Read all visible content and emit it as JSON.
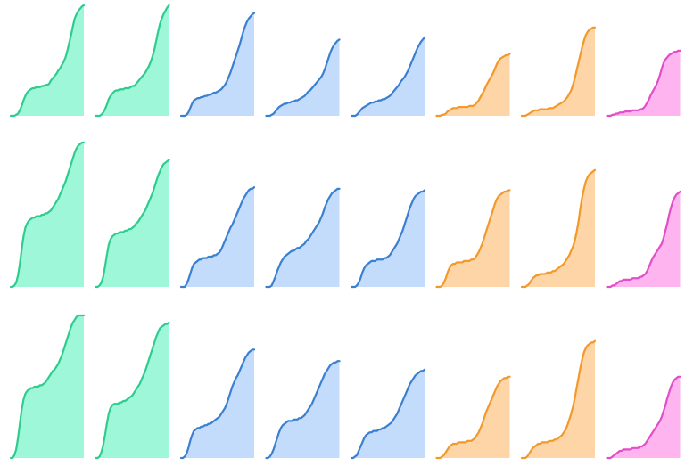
{
  "chart_data": {
    "type": "area",
    "rows": 3,
    "cols": 8,
    "x": [
      0,
      0.025,
      0.05,
      0.075,
      0.1,
      0.125,
      0.15,
      0.175,
      0.2,
      0.225,
      0.25,
      0.275,
      0.3,
      0.325,
      0.35,
      0.375,
      0.4,
      0.425,
      0.45,
      0.475,
      0.5,
      0.525,
      0.55,
      0.575,
      0.6,
      0.625,
      0.65,
      0.675,
      0.7,
      0.725,
      0.75,
      0.775,
      0.8,
      0.825,
      0.85,
      0.875,
      0.9,
      0.925,
      0.95,
      0.975,
      1
    ],
    "xlim": [
      0,
      1
    ],
    "ylim": [
      0,
      1
    ],
    "grid": false,
    "legend": "none",
    "colors": {
      "green": {
        "stroke": "#2ecc8f",
        "fill": "#9ff7d9"
      },
      "blue": {
        "stroke": "#3a7fd0",
        "fill": "#c3dcfc"
      },
      "orange": {
        "stroke": "#f3982a",
        "fill": "#fed5a6"
      },
      "pink": {
        "stroke": "#e24ec6",
        "fill": "#fdb4ef"
      }
    },
    "panels": [
      {
        "row": 0,
        "col": 0,
        "color": "green",
        "values": [
          0.0,
          0.0,
          0.0,
          0.01,
          0.02,
          0.05,
          0.09,
          0.14,
          0.18,
          0.21,
          0.23,
          0.24,
          0.25,
          0.25,
          0.26,
          0.26,
          0.26,
          0.27,
          0.27,
          0.28,
          0.28,
          0.29,
          0.32,
          0.34,
          0.36,
          0.38,
          0.41,
          0.43,
          0.46,
          0.49,
          0.53,
          0.59,
          0.66,
          0.73,
          0.81,
          0.88,
          0.92,
          0.95,
          0.97,
          0.99,
          1.0
        ]
      },
      {
        "row": 0,
        "col": 1,
        "color": "green",
        "values": [
          0.0,
          0.0,
          0.0,
          0.01,
          0.03,
          0.06,
          0.1,
          0.15,
          0.18,
          0.2,
          0.22,
          0.23,
          0.23,
          0.24,
          0.24,
          0.24,
          0.25,
          0.25,
          0.25,
          0.26,
          0.27,
          0.27,
          0.29,
          0.31,
          0.33,
          0.35,
          0.37,
          0.39,
          0.42,
          0.45,
          0.49,
          0.54,
          0.6,
          0.68,
          0.76,
          0.83,
          0.88,
          0.92,
          0.95,
          0.98,
          1.0
        ]
      },
      {
        "row": 0,
        "col": 2,
        "color": "blue",
        "values": [
          0.0,
          0.0,
          0.0,
          0.01,
          0.03,
          0.07,
          0.11,
          0.14,
          0.15,
          0.16,
          0.16,
          0.17,
          0.17,
          0.18,
          0.18,
          0.19,
          0.19,
          0.2,
          0.21,
          0.21,
          0.22,
          0.23,
          0.24,
          0.26,
          0.28,
          0.31,
          0.35,
          0.39,
          0.44,
          0.49,
          0.54,
          0.59,
          0.64,
          0.7,
          0.76,
          0.81,
          0.85,
          0.88,
          0.9,
          0.92,
          0.93
        ]
      },
      {
        "row": 0,
        "col": 3,
        "color": "blue",
        "values": [
          0.0,
          0.0,
          0.0,
          0.01,
          0.02,
          0.04,
          0.06,
          0.08,
          0.09,
          0.1,
          0.11,
          0.11,
          0.12,
          0.12,
          0.13,
          0.13,
          0.14,
          0.14,
          0.15,
          0.16,
          0.17,
          0.18,
          0.2,
          0.22,
          0.23,
          0.25,
          0.27,
          0.29,
          0.31,
          0.33,
          0.35,
          0.38,
          0.42,
          0.47,
          0.52,
          0.57,
          0.61,
          0.64,
          0.66,
          0.68,
          0.69
        ]
      },
      {
        "row": 0,
        "col": 4,
        "color": "blue",
        "values": [
          0.0,
          0.0,
          0.0,
          0.01,
          0.03,
          0.05,
          0.07,
          0.08,
          0.09,
          0.1,
          0.11,
          0.12,
          0.12,
          0.13,
          0.13,
          0.14,
          0.14,
          0.15,
          0.15,
          0.16,
          0.17,
          0.18,
          0.2,
          0.22,
          0.24,
          0.26,
          0.28,
          0.31,
          0.33,
          0.35,
          0.38,
          0.41,
          0.45,
          0.49,
          0.53,
          0.57,
          0.61,
          0.64,
          0.67,
          0.69,
          0.71
        ]
      },
      {
        "row": 0,
        "col": 5,
        "color": "orange",
        "values": [
          0.0,
          0.0,
          0.0,
          0.01,
          0.01,
          0.02,
          0.04,
          0.05,
          0.06,
          0.07,
          0.07,
          0.07,
          0.08,
          0.08,
          0.08,
          0.08,
          0.08,
          0.08,
          0.09,
          0.09,
          0.09,
          0.1,
          0.12,
          0.14,
          0.17,
          0.2,
          0.23,
          0.27,
          0.3,
          0.33,
          0.36,
          0.39,
          0.43,
          0.47,
          0.5,
          0.52,
          0.53,
          0.54,
          0.55,
          0.55,
          0.56
        ]
      },
      {
        "row": 0,
        "col": 6,
        "color": "orange",
        "values": [
          0.0,
          0.0,
          0.0,
          0.01,
          0.02,
          0.03,
          0.04,
          0.05,
          0.05,
          0.05,
          0.06,
          0.06,
          0.06,
          0.06,
          0.06,
          0.07,
          0.07,
          0.07,
          0.08,
          0.09,
          0.1,
          0.11,
          0.12,
          0.13,
          0.15,
          0.17,
          0.2,
          0.23,
          0.28,
          0.34,
          0.41,
          0.48,
          0.55,
          0.62,
          0.68,
          0.73,
          0.76,
          0.78,
          0.79,
          0.8,
          0.8
        ]
      },
      {
        "row": 0,
        "col": 7,
        "color": "pink",
        "values": [
          0.0,
          0.0,
          0.0,
          0.01,
          0.01,
          0.02,
          0.02,
          0.03,
          0.03,
          0.03,
          0.04,
          0.04,
          0.04,
          0.04,
          0.05,
          0.05,
          0.05,
          0.05,
          0.06,
          0.06,
          0.07,
          0.09,
          0.12,
          0.15,
          0.19,
          0.22,
          0.25,
          0.28,
          0.32,
          0.37,
          0.43,
          0.48,
          0.51,
          0.53,
          0.55,
          0.56,
          0.57,
          0.58,
          0.58,
          0.59,
          0.59
        ]
      },
      {
        "row": 1,
        "col": 0,
        "color": "green",
        "values": [
          0.0,
          0.0,
          0.01,
          0.03,
          0.08,
          0.16,
          0.26,
          0.35,
          0.41,
          0.44,
          0.46,
          0.47,
          0.48,
          0.48,
          0.49,
          0.49,
          0.49,
          0.5,
          0.5,
          0.51,
          0.51,
          0.52,
          0.53,
          0.55,
          0.57,
          0.59,
          0.61,
          0.64,
          0.67,
          0.7,
          0.73,
          0.77,
          0.81,
          0.85,
          0.89,
          0.93,
          0.96,
          0.98,
          0.99,
          1.0,
          1.0
        ]
      },
      {
        "row": 1,
        "col": 1,
        "color": "green",
        "values": [
          0.0,
          0.0,
          0.01,
          0.03,
          0.07,
          0.14,
          0.22,
          0.29,
          0.33,
          0.35,
          0.36,
          0.37,
          0.37,
          0.38,
          0.38,
          0.38,
          0.39,
          0.39,
          0.4,
          0.4,
          0.41,
          0.42,
          0.44,
          0.45,
          0.47,
          0.49,
          0.51,
          0.53,
          0.56,
          0.59,
          0.62,
          0.65,
          0.69,
          0.73,
          0.77,
          0.8,
          0.83,
          0.85,
          0.86,
          0.87,
          0.88
        ]
      },
      {
        "row": 1,
        "col": 2,
        "color": "blue",
        "values": [
          0.0,
          0.0,
          0.0,
          0.02,
          0.05,
          0.09,
          0.13,
          0.16,
          0.17,
          0.18,
          0.19,
          0.19,
          0.2,
          0.2,
          0.2,
          0.21,
          0.21,
          0.21,
          0.22,
          0.22,
          0.23,
          0.24,
          0.26,
          0.29,
          0.32,
          0.35,
          0.38,
          0.41,
          0.43,
          0.46,
          0.49,
          0.52,
          0.55,
          0.58,
          0.61,
          0.63,
          0.65,
          0.67,
          0.68,
          0.68,
          0.69
        ]
      },
      {
        "row": 1,
        "col": 3,
        "color": "blue",
        "values": [
          0.0,
          0.0,
          0.0,
          0.01,
          0.04,
          0.07,
          0.11,
          0.14,
          0.17,
          0.19,
          0.21,
          0.22,
          0.23,
          0.24,
          0.25,
          0.25,
          0.26,
          0.27,
          0.27,
          0.28,
          0.29,
          0.3,
          0.32,
          0.33,
          0.35,
          0.37,
          0.39,
          0.41,
          0.43,
          0.45,
          0.48,
          0.51,
          0.55,
          0.58,
          0.61,
          0.63,
          0.65,
          0.66,
          0.67,
          0.68,
          0.68
        ]
      },
      {
        "row": 1,
        "col": 4,
        "color": "blue",
        "values": [
          0.0,
          0.0,
          0.0,
          0.01,
          0.03,
          0.06,
          0.1,
          0.13,
          0.15,
          0.16,
          0.17,
          0.18,
          0.18,
          0.18,
          0.19,
          0.19,
          0.19,
          0.19,
          0.2,
          0.2,
          0.21,
          0.22,
          0.24,
          0.26,
          0.28,
          0.3,
          0.33,
          0.36,
          0.39,
          0.43,
          0.47,
          0.51,
          0.55,
          0.58,
          0.61,
          0.63,
          0.64,
          0.65,
          0.66,
          0.66,
          0.67
        ]
      },
      {
        "row": 1,
        "col": 5,
        "color": "orange",
        "values": [
          0.0,
          0.0,
          0.0,
          0.01,
          0.03,
          0.06,
          0.1,
          0.13,
          0.15,
          0.16,
          0.16,
          0.17,
          0.17,
          0.17,
          0.17,
          0.18,
          0.18,
          0.18,
          0.18,
          0.19,
          0.19,
          0.2,
          0.22,
          0.24,
          0.27,
          0.3,
          0.34,
          0.38,
          0.42,
          0.46,
          0.5,
          0.54,
          0.58,
          0.61,
          0.63,
          0.64,
          0.65,
          0.66,
          0.66,
          0.67,
          0.67
        ]
      },
      {
        "row": 1,
        "col": 6,
        "color": "orange",
        "values": [
          0.0,
          0.0,
          0.0,
          0.01,
          0.02,
          0.04,
          0.06,
          0.07,
          0.08,
          0.08,
          0.09,
          0.09,
          0.09,
          0.09,
          0.1,
          0.1,
          0.1,
          0.11,
          0.11,
          0.12,
          0.13,
          0.14,
          0.15,
          0.16,
          0.18,
          0.2,
          0.22,
          0.25,
          0.28,
          0.32,
          0.38,
          0.45,
          0.54,
          0.62,
          0.68,
          0.73,
          0.76,
          0.78,
          0.79,
          0.8,
          0.81
        ]
      },
      {
        "row": 1,
        "col": 7,
        "color": "pink",
        "values": [
          0.0,
          0.0,
          0.0,
          0.01,
          0.01,
          0.02,
          0.03,
          0.04,
          0.04,
          0.05,
          0.05,
          0.05,
          0.05,
          0.05,
          0.06,
          0.06,
          0.06,
          0.06,
          0.07,
          0.07,
          0.08,
          0.09,
          0.11,
          0.14,
          0.17,
          0.2,
          0.22,
          0.24,
          0.26,
          0.28,
          0.3,
          0.34,
          0.39,
          0.44,
          0.5,
          0.55,
          0.59,
          0.62,
          0.64,
          0.65,
          0.66
        ]
      },
      {
        "row": 2,
        "col": 0,
        "color": "green",
        "values": [
          0.0,
          0.0,
          0.02,
          0.06,
          0.14,
          0.24,
          0.34,
          0.41,
          0.45,
          0.47,
          0.48,
          0.49,
          0.49,
          0.5,
          0.5,
          0.5,
          0.51,
          0.51,
          0.52,
          0.53,
          0.55,
          0.57,
          0.59,
          0.61,
          0.62,
          0.64,
          0.66,
          0.69,
          0.72,
          0.76,
          0.8,
          0.84,
          0.88,
          0.92,
          0.95,
          0.97,
          0.99,
          1.0,
          1.0,
          1.0,
          1.0
        ]
      },
      {
        "row": 2,
        "col": 1,
        "color": "green",
        "values": [
          0.0,
          0.0,
          0.01,
          0.04,
          0.09,
          0.16,
          0.24,
          0.31,
          0.35,
          0.37,
          0.38,
          0.38,
          0.38,
          0.39,
          0.39,
          0.4,
          0.4,
          0.41,
          0.42,
          0.43,
          0.44,
          0.46,
          0.48,
          0.5,
          0.52,
          0.55,
          0.58,
          0.61,
          0.65,
          0.69,
          0.73,
          0.77,
          0.81,
          0.85,
          0.88,
          0.91,
          0.92,
          0.93,
          0.94,
          0.94,
          0.95
        ]
      },
      {
        "row": 2,
        "col": 2,
        "color": "blue",
        "values": [
          0.0,
          0.0,
          0.01,
          0.03,
          0.07,
          0.12,
          0.16,
          0.19,
          0.2,
          0.21,
          0.21,
          0.22,
          0.22,
          0.23,
          0.23,
          0.24,
          0.24,
          0.25,
          0.26,
          0.27,
          0.28,
          0.29,
          0.31,
          0.33,
          0.35,
          0.38,
          0.42,
          0.46,
          0.5,
          0.53,
          0.56,
          0.58,
          0.61,
          0.64,
          0.67,
          0.7,
          0.72,
          0.74,
          0.75,
          0.76,
          0.76
        ]
      },
      {
        "row": 2,
        "col": 3,
        "color": "blue",
        "values": [
          0.0,
          0.0,
          0.01,
          0.03,
          0.06,
          0.1,
          0.14,
          0.18,
          0.21,
          0.23,
          0.24,
          0.25,
          0.26,
          0.26,
          0.26,
          0.27,
          0.27,
          0.27,
          0.28,
          0.28,
          0.29,
          0.3,
          0.32,
          0.34,
          0.36,
          0.38,
          0.41,
          0.44,
          0.47,
          0.5,
          0.53,
          0.56,
          0.59,
          0.61,
          0.63,
          0.65,
          0.66,
          0.67,
          0.67,
          0.68,
          0.68
        ]
      },
      {
        "row": 2,
        "col": 4,
        "color": "blue",
        "values": [
          0.0,
          0.0,
          0.01,
          0.02,
          0.05,
          0.08,
          0.11,
          0.14,
          0.16,
          0.17,
          0.18,
          0.18,
          0.19,
          0.19,
          0.19,
          0.2,
          0.2,
          0.21,
          0.21,
          0.22,
          0.23,
          0.24,
          0.25,
          0.27,
          0.29,
          0.31,
          0.34,
          0.37,
          0.4,
          0.43,
          0.46,
          0.49,
          0.52,
          0.54,
          0.56,
          0.58,
          0.59,
          0.6,
          0.61,
          0.61,
          0.62
        ]
      },
      {
        "row": 2,
        "col": 5,
        "color": "orange",
        "values": [
          0.0,
          0.0,
          0.0,
          0.01,
          0.02,
          0.04,
          0.06,
          0.08,
          0.09,
          0.1,
          0.1,
          0.1,
          0.11,
          0.11,
          0.11,
          0.11,
          0.11,
          0.12,
          0.12,
          0.12,
          0.13,
          0.14,
          0.16,
          0.18,
          0.21,
          0.24,
          0.28,
          0.32,
          0.35,
          0.38,
          0.41,
          0.44,
          0.47,
          0.5,
          0.52,
          0.54,
          0.55,
          0.56,
          0.56,
          0.57,
          0.57
        ]
      },
      {
        "row": 2,
        "col": 6,
        "color": "orange",
        "values": [
          0.0,
          0.0,
          0.0,
          0.01,
          0.03,
          0.05,
          0.07,
          0.08,
          0.09,
          0.1,
          0.1,
          0.11,
          0.11,
          0.11,
          0.11,
          0.12,
          0.12,
          0.12,
          0.13,
          0.13,
          0.14,
          0.15,
          0.16,
          0.18,
          0.2,
          0.23,
          0.27,
          0.31,
          0.36,
          0.42,
          0.49,
          0.56,
          0.63,
          0.69,
          0.74,
          0.77,
          0.79,
          0.8,
          0.81,
          0.81,
          0.82
        ]
      },
      {
        "row": 2,
        "col": 7,
        "color": "pink",
        "values": [
          0.0,
          0.0,
          0.0,
          0.01,
          0.02,
          0.03,
          0.04,
          0.05,
          0.05,
          0.06,
          0.06,
          0.06,
          0.06,
          0.06,
          0.07,
          0.07,
          0.07,
          0.07,
          0.08,
          0.08,
          0.09,
          0.1,
          0.12,
          0.14,
          0.16,
          0.18,
          0.2,
          0.22,
          0.24,
          0.26,
          0.29,
          0.33,
          0.37,
          0.42,
          0.46,
          0.5,
          0.53,
          0.55,
          0.56,
          0.57,
          0.57
        ]
      }
    ]
  }
}
